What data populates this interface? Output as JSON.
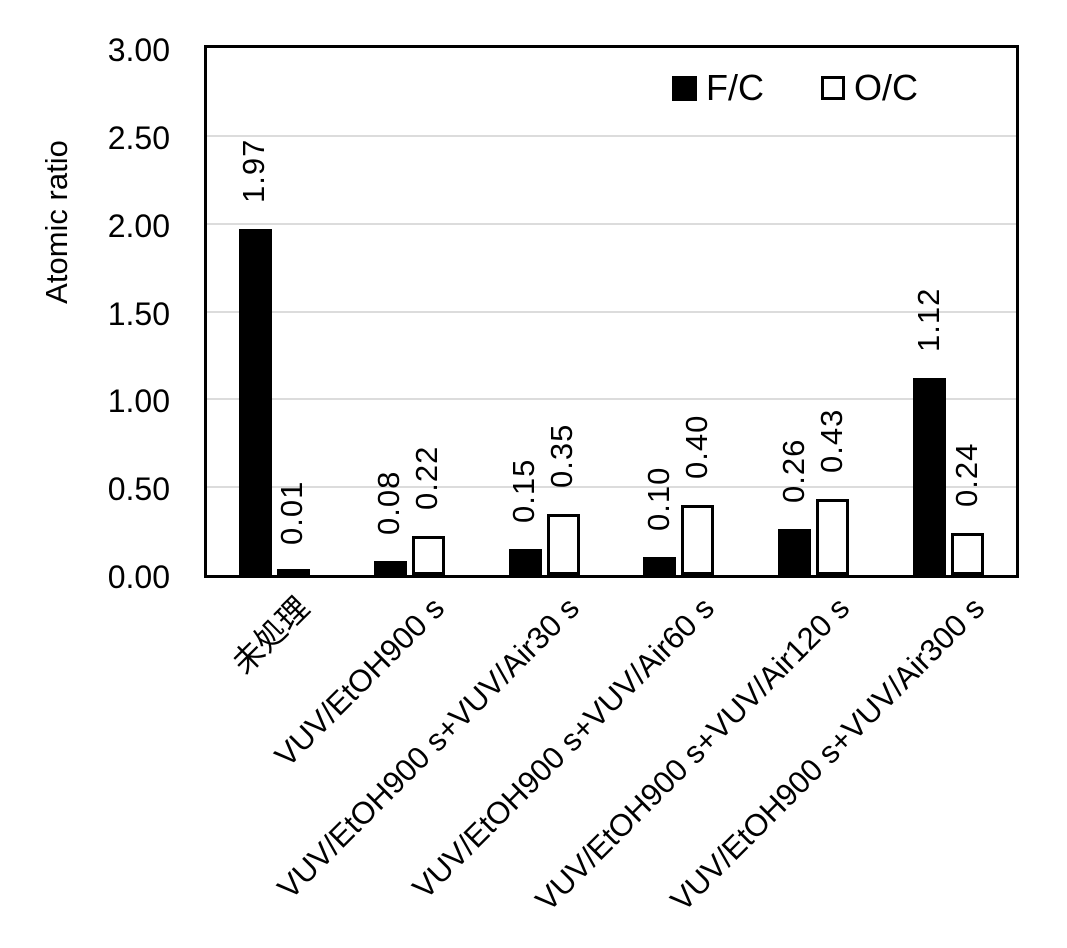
{
  "chart_data": {
    "type": "bar",
    "title": "",
    "ylabel": "Atomic ratio",
    "xlabel": "",
    "categories": [
      "未処理",
      "VUV/EtOH900 s",
      "VUV/EtOH900 s+VUV/Air30 s",
      "VUV/EtOH900 s+VUV/Air60 s",
      "VUV/EtOH900 s+VUV/Air120 s",
      "VUV/EtOH900 s+VUV/Air300 s"
    ],
    "series": [
      {
        "name": "F/C",
        "fill": "#000000",
        "border": "#000000",
        "values": [
          1.97,
          0.08,
          0.15,
          0.1,
          0.26,
          1.12
        ],
        "labels": [
          "1.97",
          "0.08",
          "0.15",
          "0.10",
          "0.26",
          "1.12"
        ]
      },
      {
        "name": "O/C",
        "fill": "#ffffff",
        "border": "#000000",
        "values": [
          0.01,
          0.22,
          0.35,
          0.4,
          0.43,
          0.24
        ],
        "labels": [
          "0.01",
          "0.22",
          "0.35",
          "0.40",
          "0.43",
          "0.24"
        ]
      }
    ],
    "ylim": [
      0,
      3
    ],
    "ytick_step": 0.5,
    "ytick_labels": [
      "0.00",
      "0.50",
      "1.00",
      "1.50",
      "2.00",
      "2.50",
      "3.00"
    ],
    "grid": true,
    "legend_position": "top-right-inside",
    "colors": {
      "grid": "#dcdcdc",
      "axis": "#000000",
      "background": "#ffffff"
    }
  }
}
